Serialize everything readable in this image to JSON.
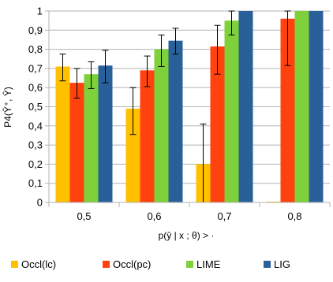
{
  "chart_data": {
    "type": "bar",
    "xlabel": "p(ŷ | x ; θ) > ·",
    "ylabel": "P4(Ŷ⁺, Ŷ)",
    "categories": [
      "0,5",
      "0,6",
      "0,7",
      "0,8"
    ],
    "ylim": [
      0,
      1
    ],
    "yticks": [
      "0",
      "0,1",
      "0,2",
      "0,3",
      "0,4",
      "0,5",
      "0,6",
      "0,7",
      "0,8",
      "0,9",
      "1"
    ],
    "grid": "horizontal",
    "legend_position": "bottom",
    "series": [
      {
        "name": "Occl(lc)",
        "color": "#FFC000",
        "values": [
          0.71,
          0.49,
          0.2,
          0.0
        ],
        "err_low": [
          0.635,
          0.355,
          0.0,
          0.0
        ],
        "err_high": [
          0.775,
          0.6,
          0.41,
          0.0
        ]
      },
      {
        "name": "Occl(pc)",
        "color": "#FF420E",
        "values": [
          0.625,
          0.69,
          0.815,
          0.96
        ],
        "err_low": [
          0.545,
          0.605,
          0.67,
          0.715
        ],
        "err_high": [
          0.7,
          0.765,
          0.925,
          1.0
        ]
      },
      {
        "name": "LIME",
        "color": "#7FD13B",
        "values": [
          0.67,
          0.8,
          0.95,
          1.0
        ],
        "err_low": [
          0.595,
          0.71,
          0.875,
          1.0
        ],
        "err_high": [
          0.735,
          0.875,
          1.0,
          1.0
        ]
      },
      {
        "name": "LIG",
        "color": "#2A6099",
        "values": [
          0.715,
          0.845,
          1.0,
          1.0
        ],
        "err_low": [
          0.625,
          0.775,
          1.0,
          1.0
        ],
        "err_high": [
          0.795,
          0.91,
          1.0,
          1.0
        ]
      }
    ]
  }
}
